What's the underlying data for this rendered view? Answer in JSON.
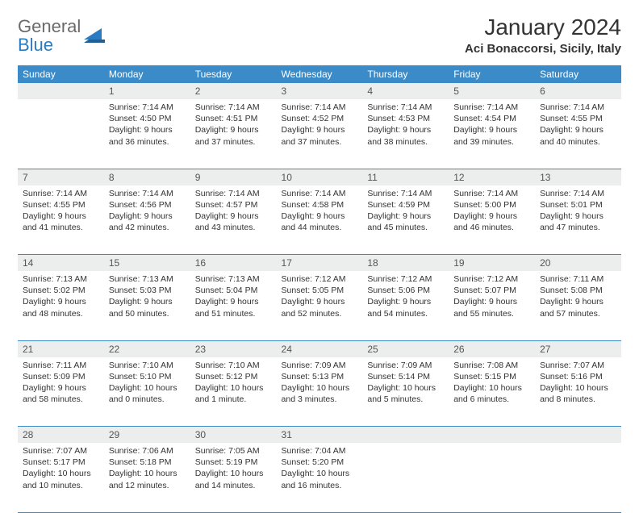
{
  "brand": {
    "word1": "General",
    "word2": "Blue",
    "shape_color": "#2a7bbf",
    "text_color_gray": "#6a6a6a"
  },
  "title": "January 2024",
  "location": "Aci Bonaccorsi, Sicily, Italy",
  "colors": {
    "header_bg": "#3b8bc8",
    "header_fg": "#ffffff",
    "daynum_bg": "#eceded",
    "rule": "#3b8bc8"
  },
  "day_headers": [
    "Sunday",
    "Monday",
    "Tuesday",
    "Wednesday",
    "Thursday",
    "Friday",
    "Saturday"
  ],
  "weeks": [
    [
      null,
      {
        "n": "1",
        "sr": "Sunrise: 7:14 AM",
        "ss": "Sunset: 4:50 PM",
        "dl": "Daylight: 9 hours and 36 minutes."
      },
      {
        "n": "2",
        "sr": "Sunrise: 7:14 AM",
        "ss": "Sunset: 4:51 PM",
        "dl": "Daylight: 9 hours and 37 minutes."
      },
      {
        "n": "3",
        "sr": "Sunrise: 7:14 AM",
        "ss": "Sunset: 4:52 PM",
        "dl": "Daylight: 9 hours and 37 minutes."
      },
      {
        "n": "4",
        "sr": "Sunrise: 7:14 AM",
        "ss": "Sunset: 4:53 PM",
        "dl": "Daylight: 9 hours and 38 minutes."
      },
      {
        "n": "5",
        "sr": "Sunrise: 7:14 AM",
        "ss": "Sunset: 4:54 PM",
        "dl": "Daylight: 9 hours and 39 minutes."
      },
      {
        "n": "6",
        "sr": "Sunrise: 7:14 AM",
        "ss": "Sunset: 4:55 PM",
        "dl": "Daylight: 9 hours and 40 minutes."
      }
    ],
    [
      {
        "n": "7",
        "sr": "Sunrise: 7:14 AM",
        "ss": "Sunset: 4:55 PM",
        "dl": "Daylight: 9 hours and 41 minutes."
      },
      {
        "n": "8",
        "sr": "Sunrise: 7:14 AM",
        "ss": "Sunset: 4:56 PM",
        "dl": "Daylight: 9 hours and 42 minutes."
      },
      {
        "n": "9",
        "sr": "Sunrise: 7:14 AM",
        "ss": "Sunset: 4:57 PM",
        "dl": "Daylight: 9 hours and 43 minutes."
      },
      {
        "n": "10",
        "sr": "Sunrise: 7:14 AM",
        "ss": "Sunset: 4:58 PM",
        "dl": "Daylight: 9 hours and 44 minutes."
      },
      {
        "n": "11",
        "sr": "Sunrise: 7:14 AM",
        "ss": "Sunset: 4:59 PM",
        "dl": "Daylight: 9 hours and 45 minutes."
      },
      {
        "n": "12",
        "sr": "Sunrise: 7:14 AM",
        "ss": "Sunset: 5:00 PM",
        "dl": "Daylight: 9 hours and 46 minutes."
      },
      {
        "n": "13",
        "sr": "Sunrise: 7:14 AM",
        "ss": "Sunset: 5:01 PM",
        "dl": "Daylight: 9 hours and 47 minutes."
      }
    ],
    [
      {
        "n": "14",
        "sr": "Sunrise: 7:13 AM",
        "ss": "Sunset: 5:02 PM",
        "dl": "Daylight: 9 hours and 48 minutes."
      },
      {
        "n": "15",
        "sr": "Sunrise: 7:13 AM",
        "ss": "Sunset: 5:03 PM",
        "dl": "Daylight: 9 hours and 50 minutes."
      },
      {
        "n": "16",
        "sr": "Sunrise: 7:13 AM",
        "ss": "Sunset: 5:04 PM",
        "dl": "Daylight: 9 hours and 51 minutes."
      },
      {
        "n": "17",
        "sr": "Sunrise: 7:12 AM",
        "ss": "Sunset: 5:05 PM",
        "dl": "Daylight: 9 hours and 52 minutes."
      },
      {
        "n": "18",
        "sr": "Sunrise: 7:12 AM",
        "ss": "Sunset: 5:06 PM",
        "dl": "Daylight: 9 hours and 54 minutes."
      },
      {
        "n": "19",
        "sr": "Sunrise: 7:12 AM",
        "ss": "Sunset: 5:07 PM",
        "dl": "Daylight: 9 hours and 55 minutes."
      },
      {
        "n": "20",
        "sr": "Sunrise: 7:11 AM",
        "ss": "Sunset: 5:08 PM",
        "dl": "Daylight: 9 hours and 57 minutes."
      }
    ],
    [
      {
        "n": "21",
        "sr": "Sunrise: 7:11 AM",
        "ss": "Sunset: 5:09 PM",
        "dl": "Daylight: 9 hours and 58 minutes."
      },
      {
        "n": "22",
        "sr": "Sunrise: 7:10 AM",
        "ss": "Sunset: 5:10 PM",
        "dl": "Daylight: 10 hours and 0 minutes."
      },
      {
        "n": "23",
        "sr": "Sunrise: 7:10 AM",
        "ss": "Sunset: 5:12 PM",
        "dl": "Daylight: 10 hours and 1 minute."
      },
      {
        "n": "24",
        "sr": "Sunrise: 7:09 AM",
        "ss": "Sunset: 5:13 PM",
        "dl": "Daylight: 10 hours and 3 minutes."
      },
      {
        "n": "25",
        "sr": "Sunrise: 7:09 AM",
        "ss": "Sunset: 5:14 PM",
        "dl": "Daylight: 10 hours and 5 minutes."
      },
      {
        "n": "26",
        "sr": "Sunrise: 7:08 AM",
        "ss": "Sunset: 5:15 PM",
        "dl": "Daylight: 10 hours and 6 minutes."
      },
      {
        "n": "27",
        "sr": "Sunrise: 7:07 AM",
        "ss": "Sunset: 5:16 PM",
        "dl": "Daylight: 10 hours and 8 minutes."
      }
    ],
    [
      {
        "n": "28",
        "sr": "Sunrise: 7:07 AM",
        "ss": "Sunset: 5:17 PM",
        "dl": "Daylight: 10 hours and 10 minutes."
      },
      {
        "n": "29",
        "sr": "Sunrise: 7:06 AM",
        "ss": "Sunset: 5:18 PM",
        "dl": "Daylight: 10 hours and 12 minutes."
      },
      {
        "n": "30",
        "sr": "Sunrise: 7:05 AM",
        "ss": "Sunset: 5:19 PM",
        "dl": "Daylight: 10 hours and 14 minutes."
      },
      {
        "n": "31",
        "sr": "Sunrise: 7:04 AM",
        "ss": "Sunset: 5:20 PM",
        "dl": "Daylight: 10 hours and 16 minutes."
      },
      null,
      null,
      null
    ]
  ]
}
